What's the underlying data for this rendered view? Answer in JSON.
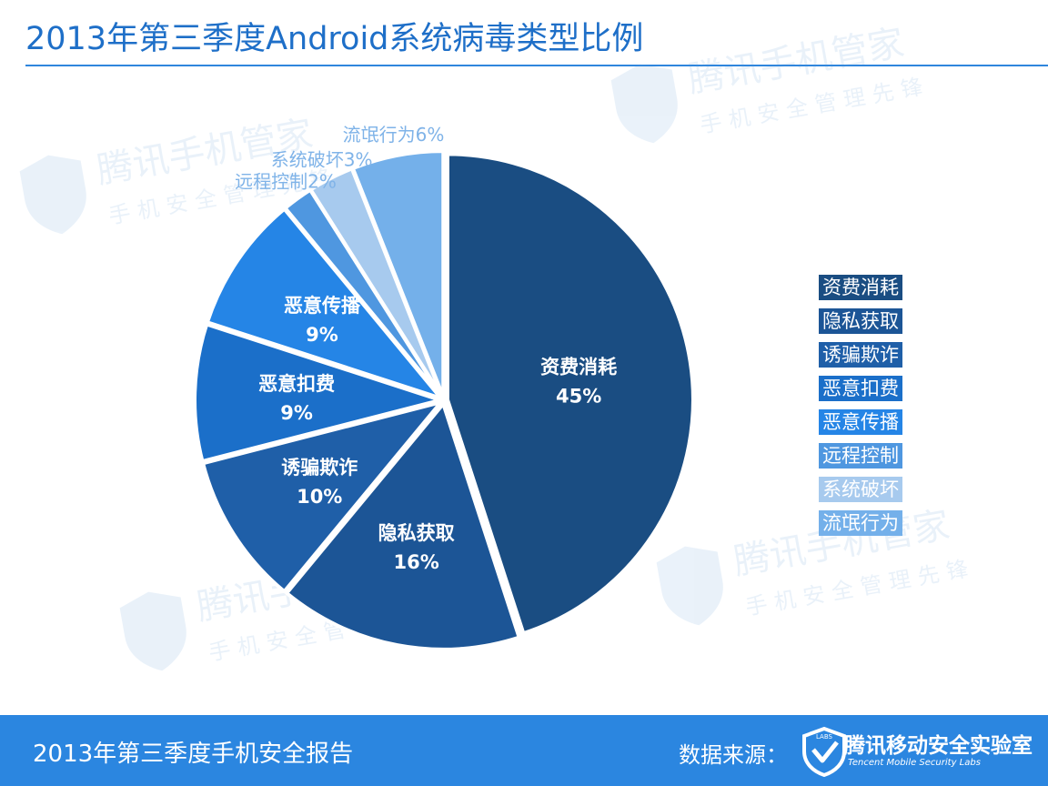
{
  "title": "2013年第三季度Android系统病毒类型比例",
  "chart_data": {
    "type": "pie",
    "title": "2013年第三季度Android系统病毒类型比例",
    "legend_position": "right",
    "slices": [
      {
        "label": "资费消耗",
        "value": 45,
        "value_label": "45%",
        "color": "#1a4d82",
        "label_style": "inside"
      },
      {
        "label": "隐私获取",
        "value": 16,
        "value_label": "16%",
        "color": "#1c5596",
        "label_style": "inside"
      },
      {
        "label": "诱骗欺诈",
        "value": 10,
        "value_label": "10%",
        "color": "#1f5fa8",
        "label_style": "inside"
      },
      {
        "label": "恶意扣费",
        "value": 9,
        "value_label": "9%",
        "color": "#1b6fc9",
        "label_style": "inside"
      },
      {
        "label": "恶意传播",
        "value": 9,
        "value_label": "9%",
        "color": "#2585e6",
        "label_style": "inside"
      },
      {
        "label": "远程控制",
        "value": 2,
        "value_label": "2%",
        "color": "#4f97e0",
        "label_style": "outside"
      },
      {
        "label": "系统破坏",
        "value": 3,
        "value_label": "3%",
        "color": "#a7caee",
        "label_style": "outside"
      },
      {
        "label": "流氓行为",
        "value": 6,
        "value_label": "6%",
        "color": "#74b0ea",
        "label_style": "outside"
      }
    ]
  },
  "watermark": {
    "brand": "腾讯手机管家",
    "slogan": "手机安全管理先锋"
  },
  "footer": {
    "report_title": "2013年第三季度手机安全报告",
    "source_label": "数据来源：",
    "org_name": "腾讯移动安全实验室",
    "org_name_en": "Tencent Mobile Security Labs",
    "logo_text": "LABS"
  },
  "colors": {
    "title": "#1e6fc8",
    "footer_bg": "#2b86e0",
    "outside_label": "#7fb3e8"
  }
}
